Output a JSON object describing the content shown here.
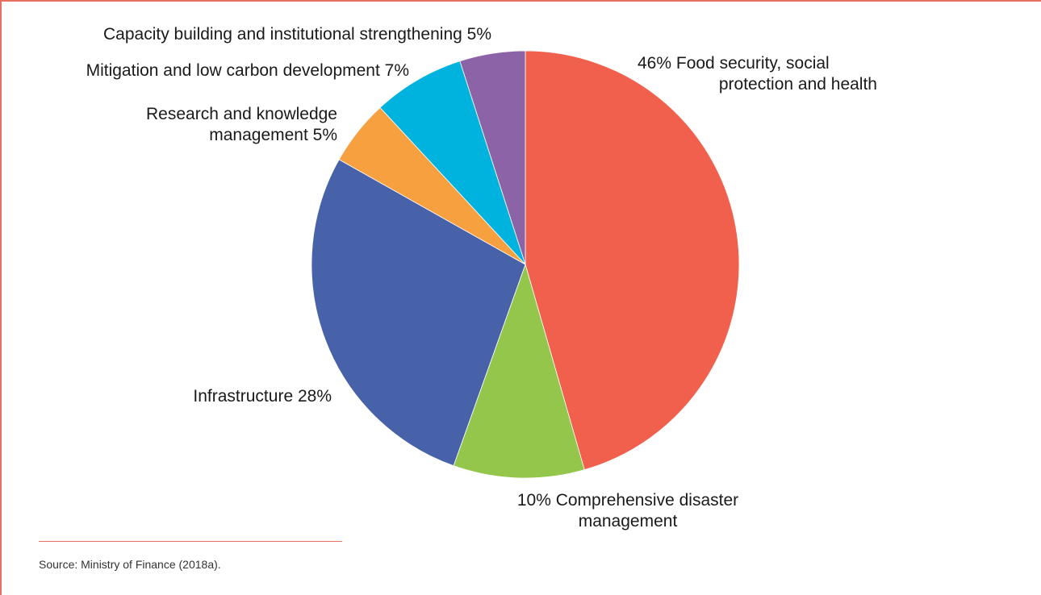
{
  "colors": {
    "frame": "#e8705f"
  },
  "chart_data": {
    "type": "pie",
    "start_angle_deg": 0,
    "direction": "clockwise",
    "slices": [
      {
        "label_lines": [
          "46% Food security, social",
          "protection and health"
        ],
        "value": 46,
        "color": "#f0604c"
      },
      {
        "label_lines": [
          "10% Comprehensive disaster",
          "management"
        ],
        "value": 10,
        "color": "#93c64a"
      },
      {
        "label_lines": [
          "Infrastructure 28%"
        ],
        "value": 28,
        "color": "#4862aa"
      },
      {
        "label_lines": [
          "Research and knowledge",
          "management 5%"
        ],
        "value": 5,
        "color": "#f7a040"
      },
      {
        "label_lines": [
          "Mitigation and low carbon development 7%"
        ],
        "value": 7,
        "color": "#00b3de"
      },
      {
        "label_lines": [
          "Capacity building and institutional strengthening 5%"
        ],
        "value": 5,
        "color": "#8d63a8"
      }
    ]
  },
  "source": "Source: Ministry of Finance (2018a)."
}
